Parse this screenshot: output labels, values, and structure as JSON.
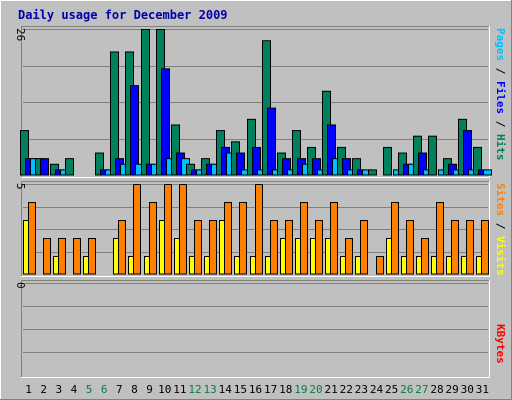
{
  "chart_data": {
    "type": "bar",
    "title": "Daily usage for December 2009",
    "title_color": "#0000aa",
    "categories": [
      "1",
      "2",
      "3",
      "4",
      "5",
      "6",
      "7",
      "8",
      "9",
      "10",
      "11",
      "12",
      "13",
      "14",
      "15",
      "16",
      "17",
      "18",
      "19",
      "20",
      "21",
      "22",
      "23",
      "24",
      "25",
      "26",
      "27",
      "28",
      "29",
      "30",
      "31"
    ],
    "weekend_days": [
      "5",
      "6",
      "12",
      "13",
      "19",
      "20",
      "26",
      "27"
    ],
    "weekday_label_color": "#000000",
    "weekend_label_color": "#008040",
    "panels": [
      {
        "id": "hits-files-pages",
        "ymax": 26,
        "ymax_label": "26",
        "series": [
          {
            "name": "Hits",
            "color": "#00805c",
            "values": [
              8,
              3,
              2,
              3,
              0,
              4,
              22,
              22,
              26,
              26,
              9,
              2,
              3,
              8,
              6,
              10,
              24,
              4,
              8,
              5,
              15,
              5,
              3,
              1,
              5,
              4,
              7,
              7,
              3,
              10,
              5
            ]
          },
          {
            "name": "Files",
            "color": "#0000ff",
            "values": [
              3,
              3,
              1,
              0,
              0,
              1,
              3,
              16,
              2,
              19,
              4,
              1,
              2,
              5,
              4,
              5,
              12,
              3,
              3,
              3,
              9,
              3,
              1,
              0,
              0,
              2,
              4,
              0,
              2,
              8,
              1
            ]
          },
          {
            "name": "Pages",
            "color": "#00c0ff",
            "values": [
              3,
              0,
              1,
              0,
              0,
              1,
              2,
              2,
              2,
              3,
              3,
              1,
              2,
              4,
              1,
              1,
              1,
              1,
              2,
              1,
              3,
              1,
              1,
              0,
              1,
              2,
              1,
              1,
              1,
              1,
              1
            ]
          }
        ],
        "legend_color_names": [
          "#00c0ff",
          "#0000ff",
          "#00805c"
        ],
        "legend_separator": " / "
      },
      {
        "id": "visits-sites",
        "ymax": 5,
        "ymax_label": "5",
        "series": [
          {
            "name": "Visits",
            "color": "#ffff00",
            "values": [
              3,
              0,
              1,
              0,
              1,
              0,
              2,
              1,
              1,
              3,
              2,
              1,
              1,
              3,
              1,
              1,
              1,
              2,
              2,
              2,
              2,
              1,
              1,
              0,
              2,
              1,
              1,
              1,
              1,
              1,
              1
            ]
          },
          {
            "name": "Sites",
            "color": "#ff8000",
            "values": [
              4,
              2,
              2,
              2,
              2,
              0,
              3,
              5,
              4,
              5,
              5,
              3,
              3,
              4,
              4,
              5,
              3,
              3,
              4,
              3,
              4,
              2,
              3,
              1,
              4,
              3,
              2,
              4,
              3,
              3,
              3
            ]
          }
        ],
        "legend_color_names": [
          "#ff8000",
          "#ffff00"
        ],
        "legend_separator": " / "
      },
      {
        "id": "kbytes",
        "ymax": 0,
        "ymax_label": "0",
        "series": [
          {
            "name": "KBytes",
            "color": "#ff0000",
            "values": [
              0,
              0,
              0,
              0,
              0,
              0,
              0,
              0,
              0,
              0,
              0,
              0,
              0,
              0,
              0,
              0,
              0,
              0,
              0,
              0,
              0,
              0,
              0,
              0,
              0,
              0,
              0,
              0,
              0,
              0,
              0
            ]
          }
        ],
        "legend_color_names": [
          "#ff0000"
        ],
        "legend_separator": ""
      }
    ],
    "grid": true,
    "legend": "right",
    "colors": {
      "background": "#c0c0c0",
      "plot_background": "#c0c0c0",
      "gridline": "#808080",
      "frame_dark": "#808080",
      "frame_light": "#ffffff",
      "bar_outline": "#000000"
    }
  }
}
